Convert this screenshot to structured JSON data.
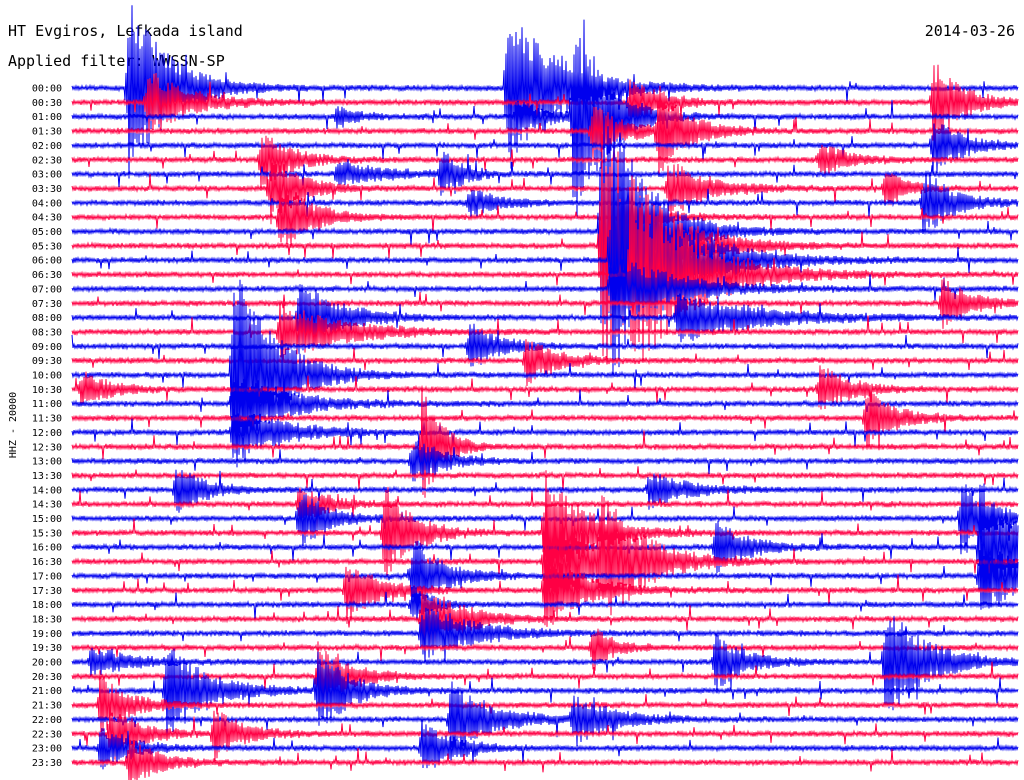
{
  "header": {
    "station": "HT Evgiros, Lefkada island",
    "date": "2014-03-26",
    "filter": "Applied filter: WWSSN-SP"
  },
  "chart_data": {
    "type": "line",
    "ylabel": "HHZ - 20000",
    "colors": [
      "#0000ee",
      "#ff0044"
    ],
    "tick_labels": [
      "00:00",
      "00:30",
      "01:00",
      "01:30",
      "02:00",
      "02:30",
      "03:00",
      "03:30",
      "04:00",
      "04:30",
      "05:00",
      "05:30",
      "06:00",
      "06:30",
      "07:00",
      "07:30",
      "08:00",
      "08:30",
      "09:00",
      "09:30",
      "10:00",
      "10:30",
      "11:00",
      "11:30",
      "12:00",
      "12:30",
      "13:00",
      "13:30",
      "14:00",
      "14:30",
      "15:00",
      "15:30",
      "16:00",
      "16:30",
      "17:00",
      "17:30",
      "18:00",
      "18:30",
      "19:00",
      "19:30",
      "20:00",
      "20:30",
      "21:00",
      "21:30",
      "22:00",
      "22:30",
      "23:00",
      "23:30"
    ],
    "events": [
      {
        "row": 0,
        "x": 0.06,
        "amp": 95,
        "dur": 0.04
      },
      {
        "row": 0,
        "x": 0.46,
        "amp": 90,
        "dur": 0.05
      },
      {
        "row": 1,
        "x": 0.08,
        "amp": 35,
        "dur": 0.04
      },
      {
        "row": 1,
        "x": 0.59,
        "amp": 25,
        "dur": 0.03
      },
      {
        "row": 1,
        "x": 0.91,
        "amp": 45,
        "dur": 0.03
      },
      {
        "row": 2,
        "x": 0.53,
        "amp": 120,
        "dur": 0.03
      },
      {
        "row": 2,
        "x": 0.47,
        "amp": 18,
        "dur": 0.03
      },
      {
        "row": 2,
        "x": 0.28,
        "amp": 12,
        "dur": 0.02
      },
      {
        "row": 3,
        "x": 0.55,
        "amp": 30,
        "dur": 0.03
      },
      {
        "row": 3,
        "x": 0.62,
        "amp": 45,
        "dur": 0.03
      },
      {
        "row": 4,
        "x": 0.91,
        "amp": 30,
        "dur": 0.03
      },
      {
        "row": 5,
        "x": 0.2,
        "amp": 30,
        "dur": 0.03
      },
      {
        "row": 5,
        "x": 0.79,
        "amp": 18,
        "dur": 0.03
      },
      {
        "row": 6,
        "x": 0.39,
        "amp": 25,
        "dur": 0.02
      },
      {
        "row": 6,
        "x": 0.28,
        "amp": 12,
        "dur": 0.05
      },
      {
        "row": 7,
        "x": 0.21,
        "amp": 35,
        "dur": 0.03
      },
      {
        "row": 7,
        "x": 0.63,
        "amp": 30,
        "dur": 0.04
      },
      {
        "row": 7,
        "x": 0.86,
        "amp": 20,
        "dur": 0.02
      },
      {
        "row": 8,
        "x": 0.9,
        "amp": 35,
        "dur": 0.03
      },
      {
        "row": 8,
        "x": 0.42,
        "amp": 15,
        "dur": 0.03
      },
      {
        "row": 9,
        "x": 0.22,
        "amp": 40,
        "dur": 0.03
      },
      {
        "row": 9,
        "x": 0.58,
        "amp": 25,
        "dur": 0.03
      },
      {
        "row": 10,
        "x": 0.56,
        "amp": 160,
        "dur": 0.04
      },
      {
        "row": 11,
        "x": 0.56,
        "amp": 130,
        "dur": 0.05
      },
      {
        "row": 12,
        "x": 0.57,
        "amp": 120,
        "dur": 0.06
      },
      {
        "row": 13,
        "x": 0.59,
        "amp": 110,
        "dur": 0.06
      },
      {
        "row": 14,
        "x": 0.57,
        "amp": 40,
        "dur": 0.06
      },
      {
        "row": 15,
        "x": 0.92,
        "amp": 25,
        "dur": 0.03
      },
      {
        "row": 16,
        "x": 0.24,
        "amp": 40,
        "dur": 0.04
      },
      {
        "row": 16,
        "x": 0.64,
        "amp": 25,
        "dur": 0.08
      },
      {
        "row": 17,
        "x": 0.22,
        "amp": 30,
        "dur": 0.06
      },
      {
        "row": 18,
        "x": 0.42,
        "amp": 25,
        "dur": 0.03
      },
      {
        "row": 19,
        "x": 0.48,
        "amp": 25,
        "dur": 0.03
      },
      {
        "row": 20,
        "x": 0.17,
        "amp": 120,
        "dur": 0.04
      },
      {
        "row": 21,
        "x": 0.01,
        "amp": 18,
        "dur": 0.03
      },
      {
        "row": 21,
        "x": 0.79,
        "amp": 25,
        "dur": 0.03
      },
      {
        "row": 22,
        "x": 0.17,
        "amp": 40,
        "dur": 0.05
      },
      {
        "row": 23,
        "x": 0.84,
        "amp": 30,
        "dur": 0.03
      },
      {
        "row": 24,
        "x": 0.17,
        "amp": 30,
        "dur": 0.05
      },
      {
        "row": 25,
        "x": 0.37,
        "amp": 60,
        "dur": 0.02
      },
      {
        "row": 26,
        "x": 0.36,
        "amp": 25,
        "dur": 0.03
      },
      {
        "row": 28,
        "x": 0.11,
        "amp": 25,
        "dur": 0.03
      },
      {
        "row": 28,
        "x": 0.61,
        "amp": 18,
        "dur": 0.04
      },
      {
        "row": 29,
        "x": 0.24,
        "amp": 20,
        "dur": 0.03
      },
      {
        "row": 30,
        "x": 0.24,
        "amp": 30,
        "dur": 0.03
      },
      {
        "row": 30,
        "x": 0.94,
        "amp": 40,
        "dur": 0.03
      },
      {
        "row": 31,
        "x": 0.33,
        "amp": 50,
        "dur": 0.03
      },
      {
        "row": 31,
        "x": 0.5,
        "amp": 65,
        "dur": 0.04
      },
      {
        "row": 32,
        "x": 0.96,
        "amp": 70,
        "dur": 0.04
      },
      {
        "row": 32,
        "x": 0.68,
        "amp": 30,
        "dur": 0.03
      },
      {
        "row": 33,
        "x": 0.5,
        "amp": 60,
        "dur": 0.05
      },
      {
        "row": 33,
        "x": 0.56,
        "amp": 55,
        "dur": 0.04
      },
      {
        "row": 34,
        "x": 0.36,
        "amp": 40,
        "dur": 0.03
      },
      {
        "row": 34,
        "x": 0.96,
        "amp": 45,
        "dur": 0.04
      },
      {
        "row": 35,
        "x": 0.29,
        "amp": 35,
        "dur": 0.03
      },
      {
        "row": 35,
        "x": 0.5,
        "amp": 40,
        "dur": 0.04
      },
      {
        "row": 36,
        "x": 0.36,
        "amp": 20,
        "dur": 0.02
      },
      {
        "row": 37,
        "x": 0.37,
        "amp": 35,
        "dur": 0.04
      },
      {
        "row": 38,
        "x": 0.37,
        "amp": 30,
        "dur": 0.05
      },
      {
        "row": 39,
        "x": 0.55,
        "amp": 25,
        "dur": 0.02
      },
      {
        "row": 40,
        "x": 0.02,
        "amp": 15,
        "dur": 0.04
      },
      {
        "row": 40,
        "x": 0.86,
        "amp": 60,
        "dur": 0.04
      },
      {
        "row": 40,
        "x": 0.68,
        "amp": 30,
        "dur": 0.03
      },
      {
        "row": 41,
        "x": 0.26,
        "amp": 35,
        "dur": 0.03
      },
      {
        "row": 42,
        "x": 0.1,
        "amp": 50,
        "dur": 0.04
      },
      {
        "row": 42,
        "x": 0.26,
        "amp": 45,
        "dur": 0.03
      },
      {
        "row": 43,
        "x": 0.03,
        "amp": 30,
        "dur": 0.03
      },
      {
        "row": 44,
        "x": 0.4,
        "amp": 40,
        "dur": 0.04
      },
      {
        "row": 44,
        "x": 0.53,
        "amp": 25,
        "dur": 0.04
      },
      {
        "row": 45,
        "x": 0.04,
        "amp": 30,
        "dur": 0.03
      },
      {
        "row": 45,
        "x": 0.15,
        "amp": 25,
        "dur": 0.03
      },
      {
        "row": 46,
        "x": 0.03,
        "amp": 25,
        "dur": 0.03
      },
      {
        "row": 46,
        "x": 0.37,
        "amp": 30,
        "dur": 0.03
      },
      {
        "row": 47,
        "x": 0.06,
        "amp": 25,
        "dur": 0.03
      }
    ]
  }
}
